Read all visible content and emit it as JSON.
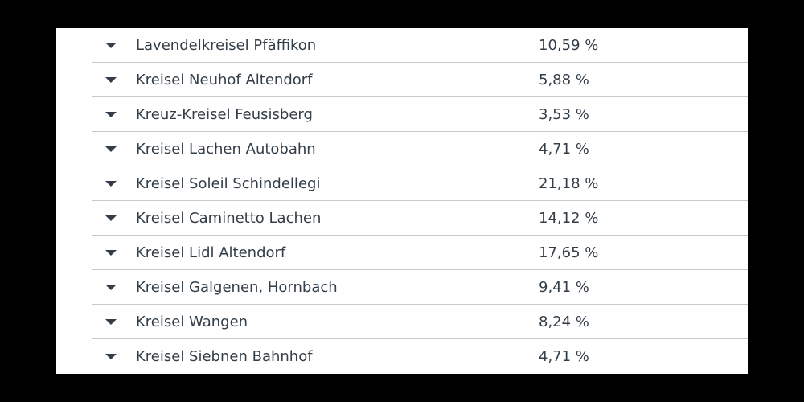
{
  "rows": [
    {
      "label": "Lavendelkreisel Pfäffikon",
      "value": "10,59 %",
      "icon": "caret-down-icon"
    },
    {
      "label": "Kreisel Neuhof Altendorf",
      "value": "5,88 %",
      "icon": "caret-down-icon"
    },
    {
      "label": "Kreuz-Kreisel Feusisberg",
      "value": "3,53 %",
      "icon": "caret-down-icon"
    },
    {
      "label": "Kreisel Lachen Autobahn",
      "value": "4,71 %",
      "icon": "caret-down-icon"
    },
    {
      "label": "Kreisel Soleil Schindellegi",
      "value": "21,18 %",
      "icon": "caret-down-icon"
    },
    {
      "label": "Kreisel Caminetto Lachen",
      "value": "14,12 %",
      "icon": "caret-down-icon"
    },
    {
      "label": "Kreisel Lidl Altendorf",
      "value": "17,65 %",
      "icon": "caret-down-icon"
    },
    {
      "label": "Kreisel Galgenen, Hornbach",
      "value": "9,41 %",
      "icon": "caret-down-icon"
    },
    {
      "label": "Kreisel Wangen",
      "value": "8,24 %",
      "icon": "caret-down-icon"
    },
    {
      "label": "Kreisel Siebnen Bahnhof",
      "value": "4,71 %",
      "icon": "caret-down-icon"
    }
  ],
  "colors": {
    "text": "#333e48",
    "divider": "#c9c9c9",
    "background": "#ffffff",
    "frame": "#000000"
  }
}
